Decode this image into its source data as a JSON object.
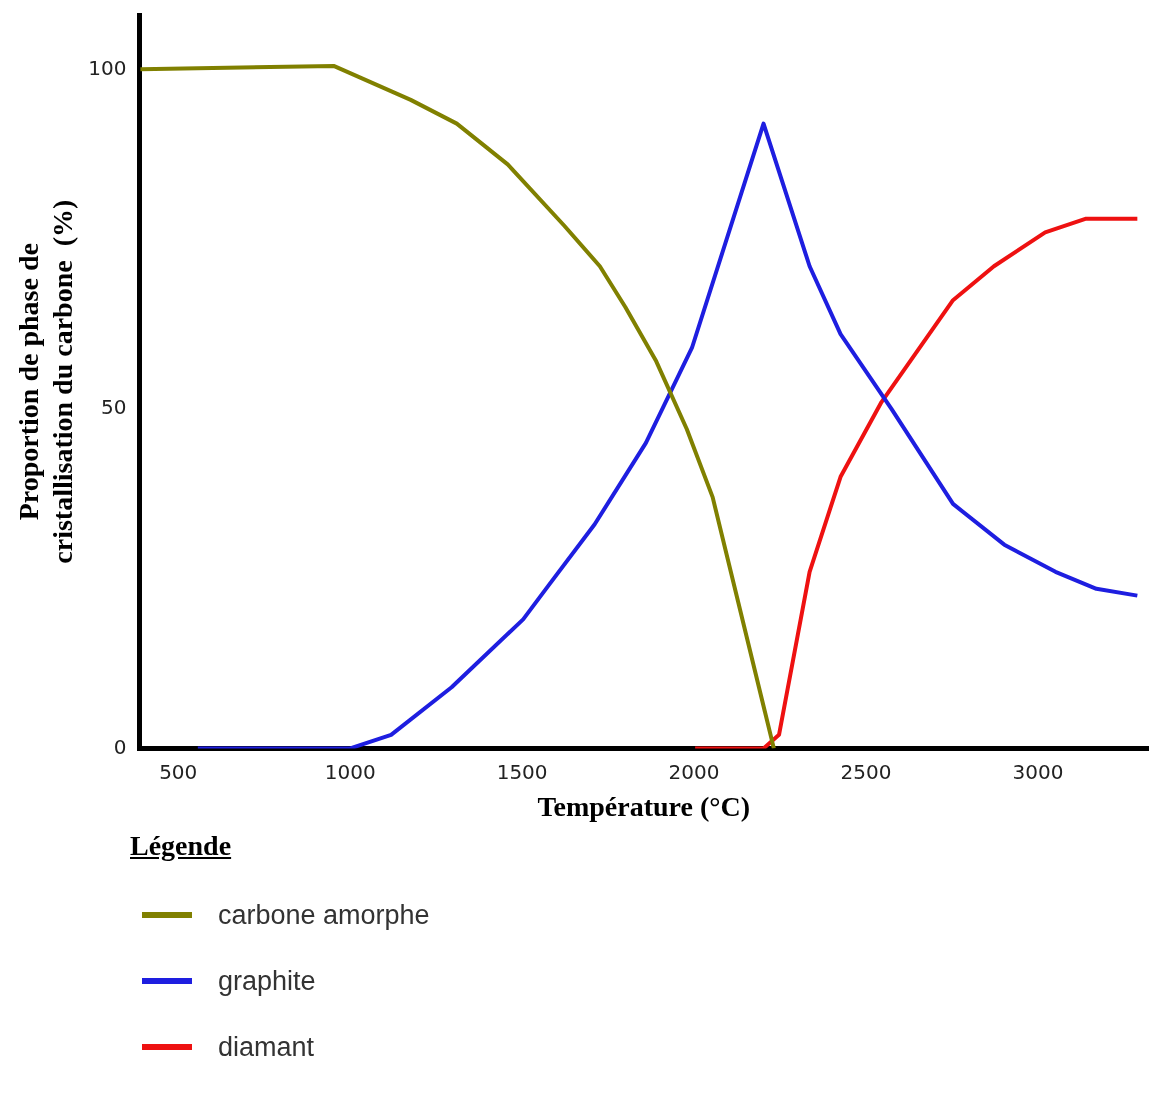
{
  "chart_data": {
    "type": "line",
    "xlabel": "Température (°C)",
    "ylabel": "Proportion de phase de\ncristallisation du carbone  (%)",
    "legend_title": "Légende",
    "legend": "bottom",
    "grid": false,
    "marker": "none",
    "line_style": "solid",
    "xlim": [
      387,
      3320
    ],
    "xticks": [
      500,
      1000,
      1500,
      2000,
      2500,
      3000
    ],
    "ylim": [
      0,
      108
    ],
    "yticks": [
      0,
      50,
      100
    ],
    "series": [
      {
        "name": "carbone amorphe",
        "color": "#808000",
        "x": [
          390,
          952,
          1176,
          1310,
          1458,
          1622,
          1726,
          1800,
          1890,
          1979,
          2054,
          2232
        ],
        "values": [
          100,
          100.5,
          95.5,
          92,
          86,
          77,
          71,
          65,
          57,
          47,
          37,
          0
        ]
      },
      {
        "name": "graphite",
        "color": "#1e1ee0",
        "x": [
          557,
          1000,
          1119,
          1295,
          1503,
          1577,
          1711,
          1860,
          1994,
          2202,
          2336,
          2426,
          2574,
          2753,
          2902,
          3051,
          3170,
          3289
        ],
        "values": [
          0,
          0,
          2,
          9,
          19,
          24,
          33,
          45,
          59,
          92,
          71,
          61,
          50,
          36,
          30,
          26,
          23.5,
          22.5
        ]
      },
      {
        "name": "diamant",
        "color": "#ee1111",
        "x": [
          2003,
          2202,
          2247,
          2336,
          2426,
          2545,
          2753,
          2872,
          3021,
          3140,
          3289
        ],
        "values": [
          0,
          0,
          2,
          26,
          40,
          51,
          66,
          71,
          76,
          78,
          78
        ]
      }
    ]
  }
}
